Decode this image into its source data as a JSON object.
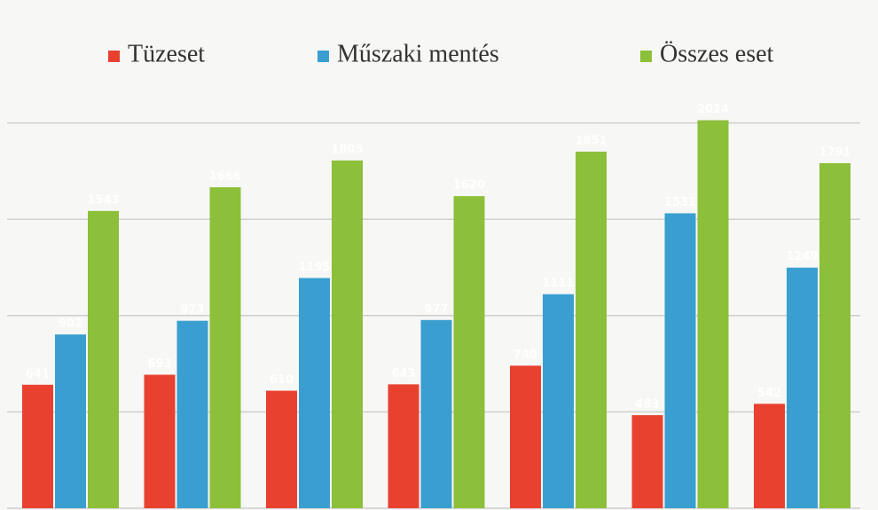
{
  "chart_data": {
    "type": "bar",
    "categories": [
      null,
      null,
      null,
      null,
      null,
      null,
      null
    ],
    "series": [
      {
        "name": "Tüzeset",
        "color": "#e8412f",
        "values": [
          641,
          693,
          610,
          643,
          740,
          483,
          542
        ]
      },
      {
        "name": "Műszaki mentés",
        "color": "#3a9fd0",
        "values": [
          902,
          973,
          1195,
          977,
          1111,
          1531,
          1249
        ]
      },
      {
        "name": "Összes eset",
        "color": "#8cbf3a",
        "values": [
          1543,
          1666,
          1805,
          1620,
          1851,
          2014,
          1791
        ]
      }
    ],
    "ylim": [
      0,
      2500
    ],
    "yticks": [
      0,
      500,
      1000,
      1500,
      2000
    ],
    "grid": true,
    "legend": "top"
  }
}
